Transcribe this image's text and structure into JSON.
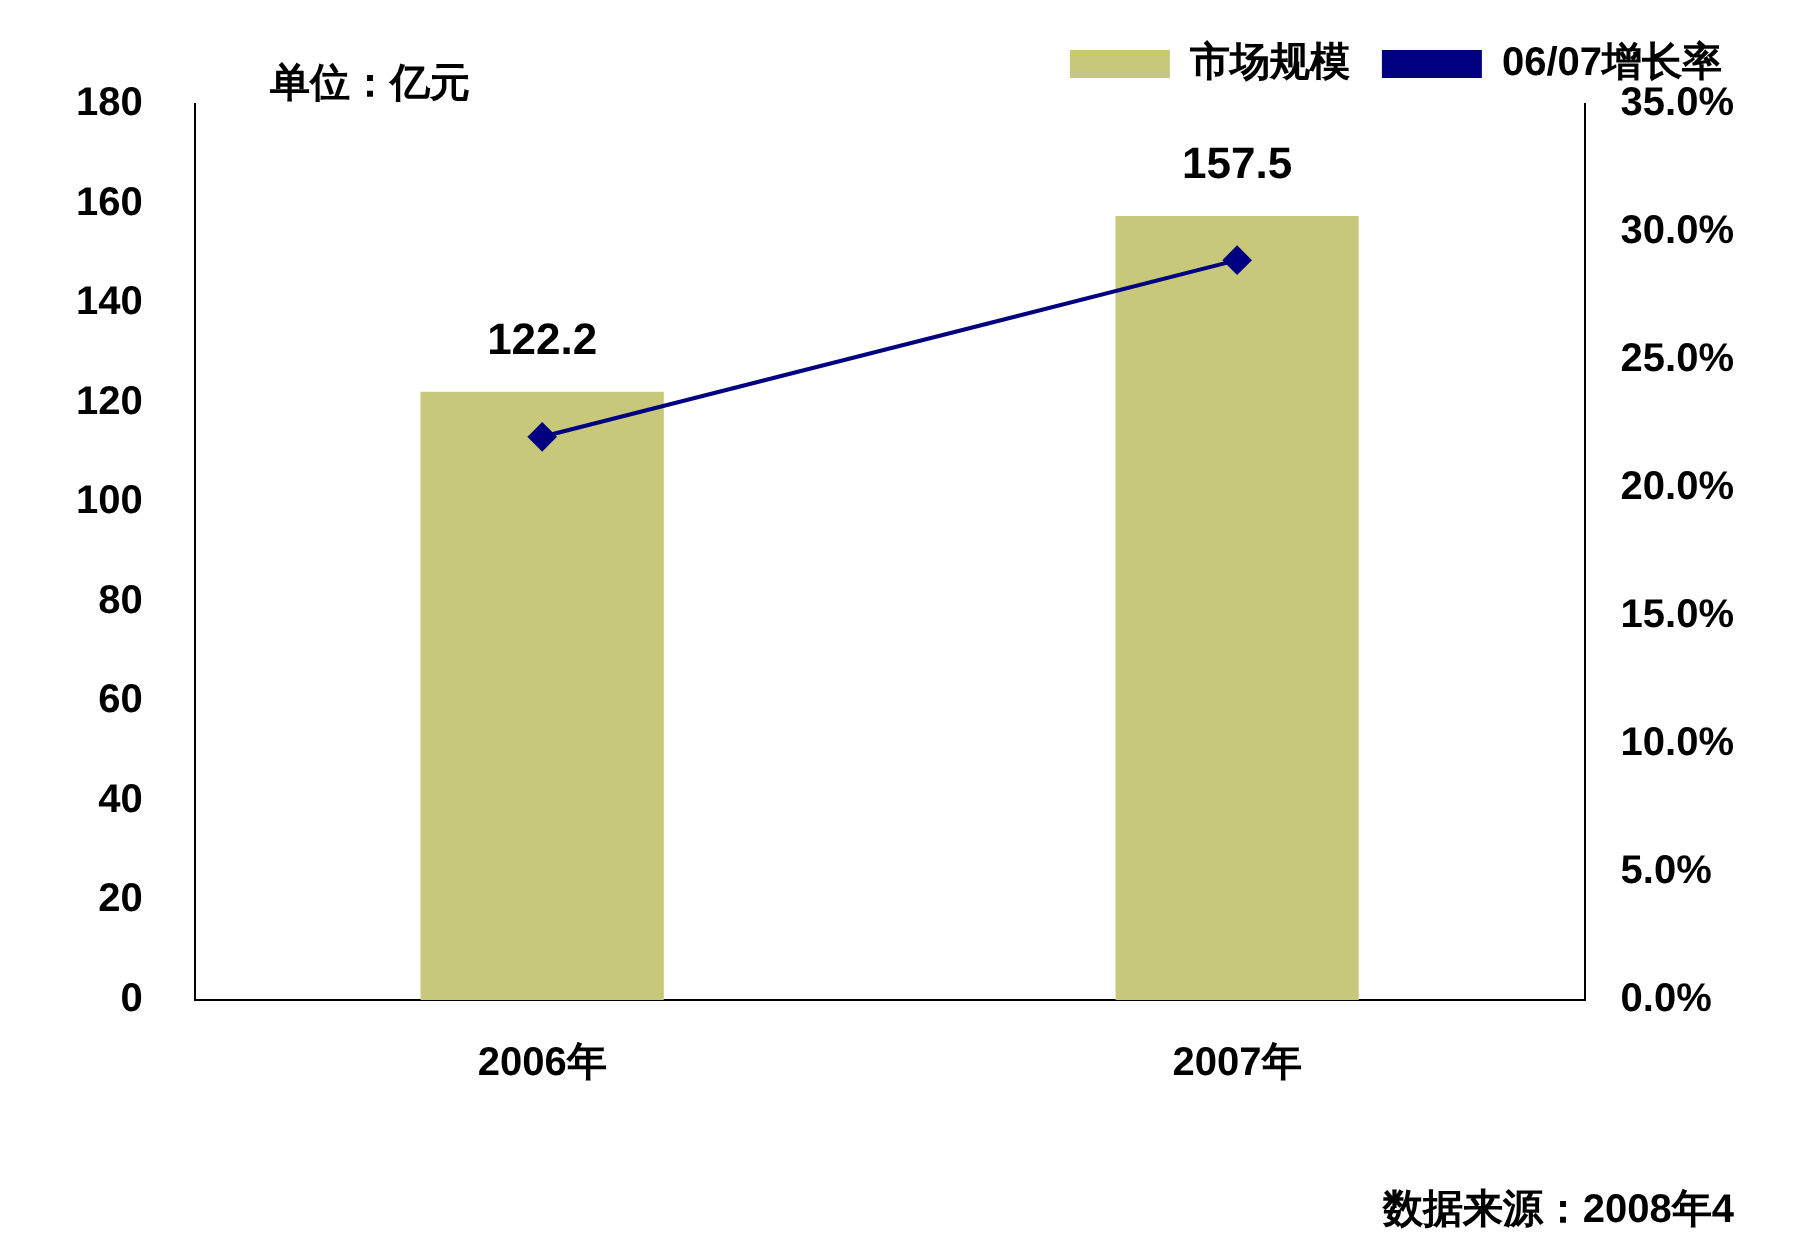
{
  "chart_data": {
    "type": "bar",
    "categories": [
      "2006年",
      "2007年"
    ],
    "series": [
      {
        "name": "市场规模",
        "color": "#c8c87a",
        "values": [
          122.2,
          157.5
        ],
        "value_labels": [
          "122.2",
          "157.5"
        ]
      },
      {
        "name": "06/07增长率",
        "type": "line",
        "axis": "y2",
        "color": "#000080",
        "values": [
          22.0,
          28.9
        ],
        "marker": "diamond"
      }
    ],
    "ylim": [
      0,
      180
    ],
    "yticks": [
      0,
      20,
      40,
      60,
      80,
      100,
      120,
      140,
      160,
      180
    ],
    "y2lim": [
      0,
      35
    ],
    "y2ticks": [
      {
        "value": 0,
        "label": "0.0%"
      },
      {
        "value": 5,
        "label": "5.0%"
      },
      {
        "value": 10,
        "label": "10.0%"
      },
      {
        "value": 15,
        "label": "15.0%"
      },
      {
        "value": 20,
        "label": "20.0%"
      },
      {
        "value": 25,
        "label": "25.0%"
      },
      {
        "value": 30,
        "label": "30.0%"
      },
      {
        "value": 35,
        "label": "35.0%"
      }
    ],
    "grid": false,
    "legend": "top right",
    "annotations": [
      "单位：亿元",
      "数据来源：2008年4"
    ]
  }
}
